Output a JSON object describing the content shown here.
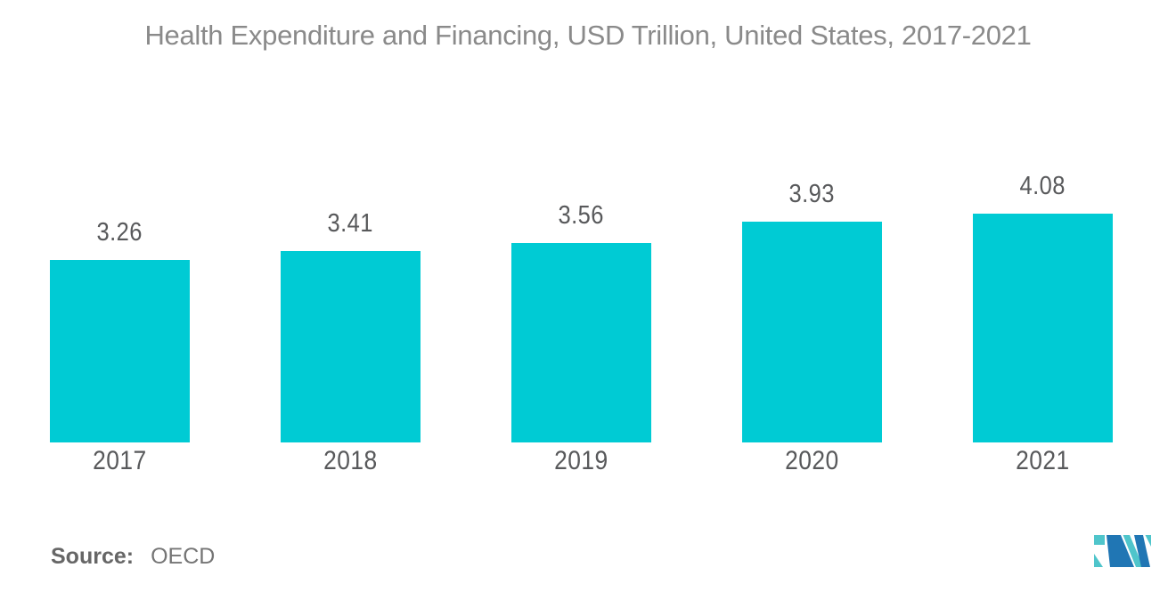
{
  "chart_data": {
    "type": "bar",
    "title": "Health Expenditure and Financing, USD Trillion, United States, 2017-2021",
    "categories": [
      "2017",
      "2018",
      "2019",
      "2020",
      "2021"
    ],
    "values": [
      3.26,
      3.41,
      3.56,
      3.93,
      4.08
    ],
    "xlabel": "",
    "ylabel": "",
    "ylim": [
      0,
      4.5
    ],
    "grid": false,
    "legend": false,
    "bar_color": "#00CBD4",
    "label_color": "#58595B",
    "title_color": "#8A8A8A"
  },
  "source": {
    "label": "Source:",
    "value": "OECD"
  },
  "branding": {
    "logo_name": "mordor-intelligence-logo",
    "logo_blue": "#2076B4",
    "logo_teal": "#4FC5CB"
  }
}
